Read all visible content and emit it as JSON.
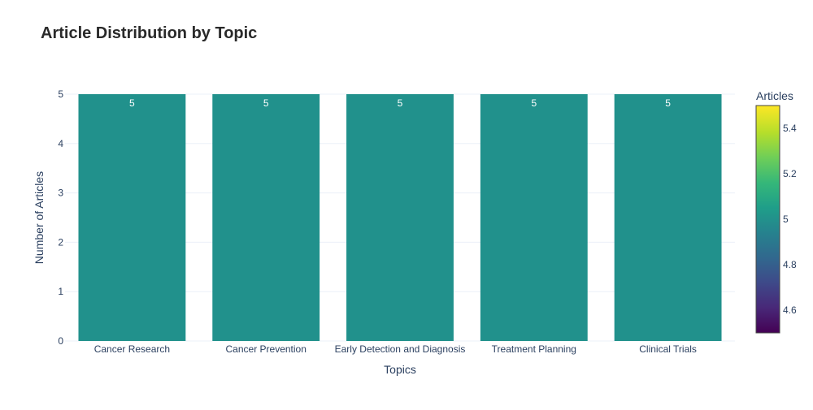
{
  "chart_data": {
    "type": "bar",
    "title": "Article Distribution by Topic",
    "xlabel": "Topics",
    "ylabel": "Number of Articles",
    "categories": [
      "Cancer Research",
      "Cancer Prevention",
      "Early Detection and Diagnosis",
      "Treatment Planning",
      "Clinical Trials"
    ],
    "values": [
      5,
      5,
      5,
      5,
      5
    ],
    "data_labels": [
      "5",
      "5",
      "5",
      "5",
      "5"
    ],
    "ylim": [
      0,
      5
    ],
    "yticks": [
      "0",
      "1",
      "2",
      "3",
      "4",
      "5"
    ],
    "bar_color": "#21918c",
    "grid": true,
    "colorbar": {
      "title": "Articles",
      "range": [
        4.5,
        5.5
      ],
      "ticks": [
        "4.6",
        "4.8",
        "5",
        "5.2",
        "5.4"
      ],
      "colorscale": "Viridis"
    }
  }
}
